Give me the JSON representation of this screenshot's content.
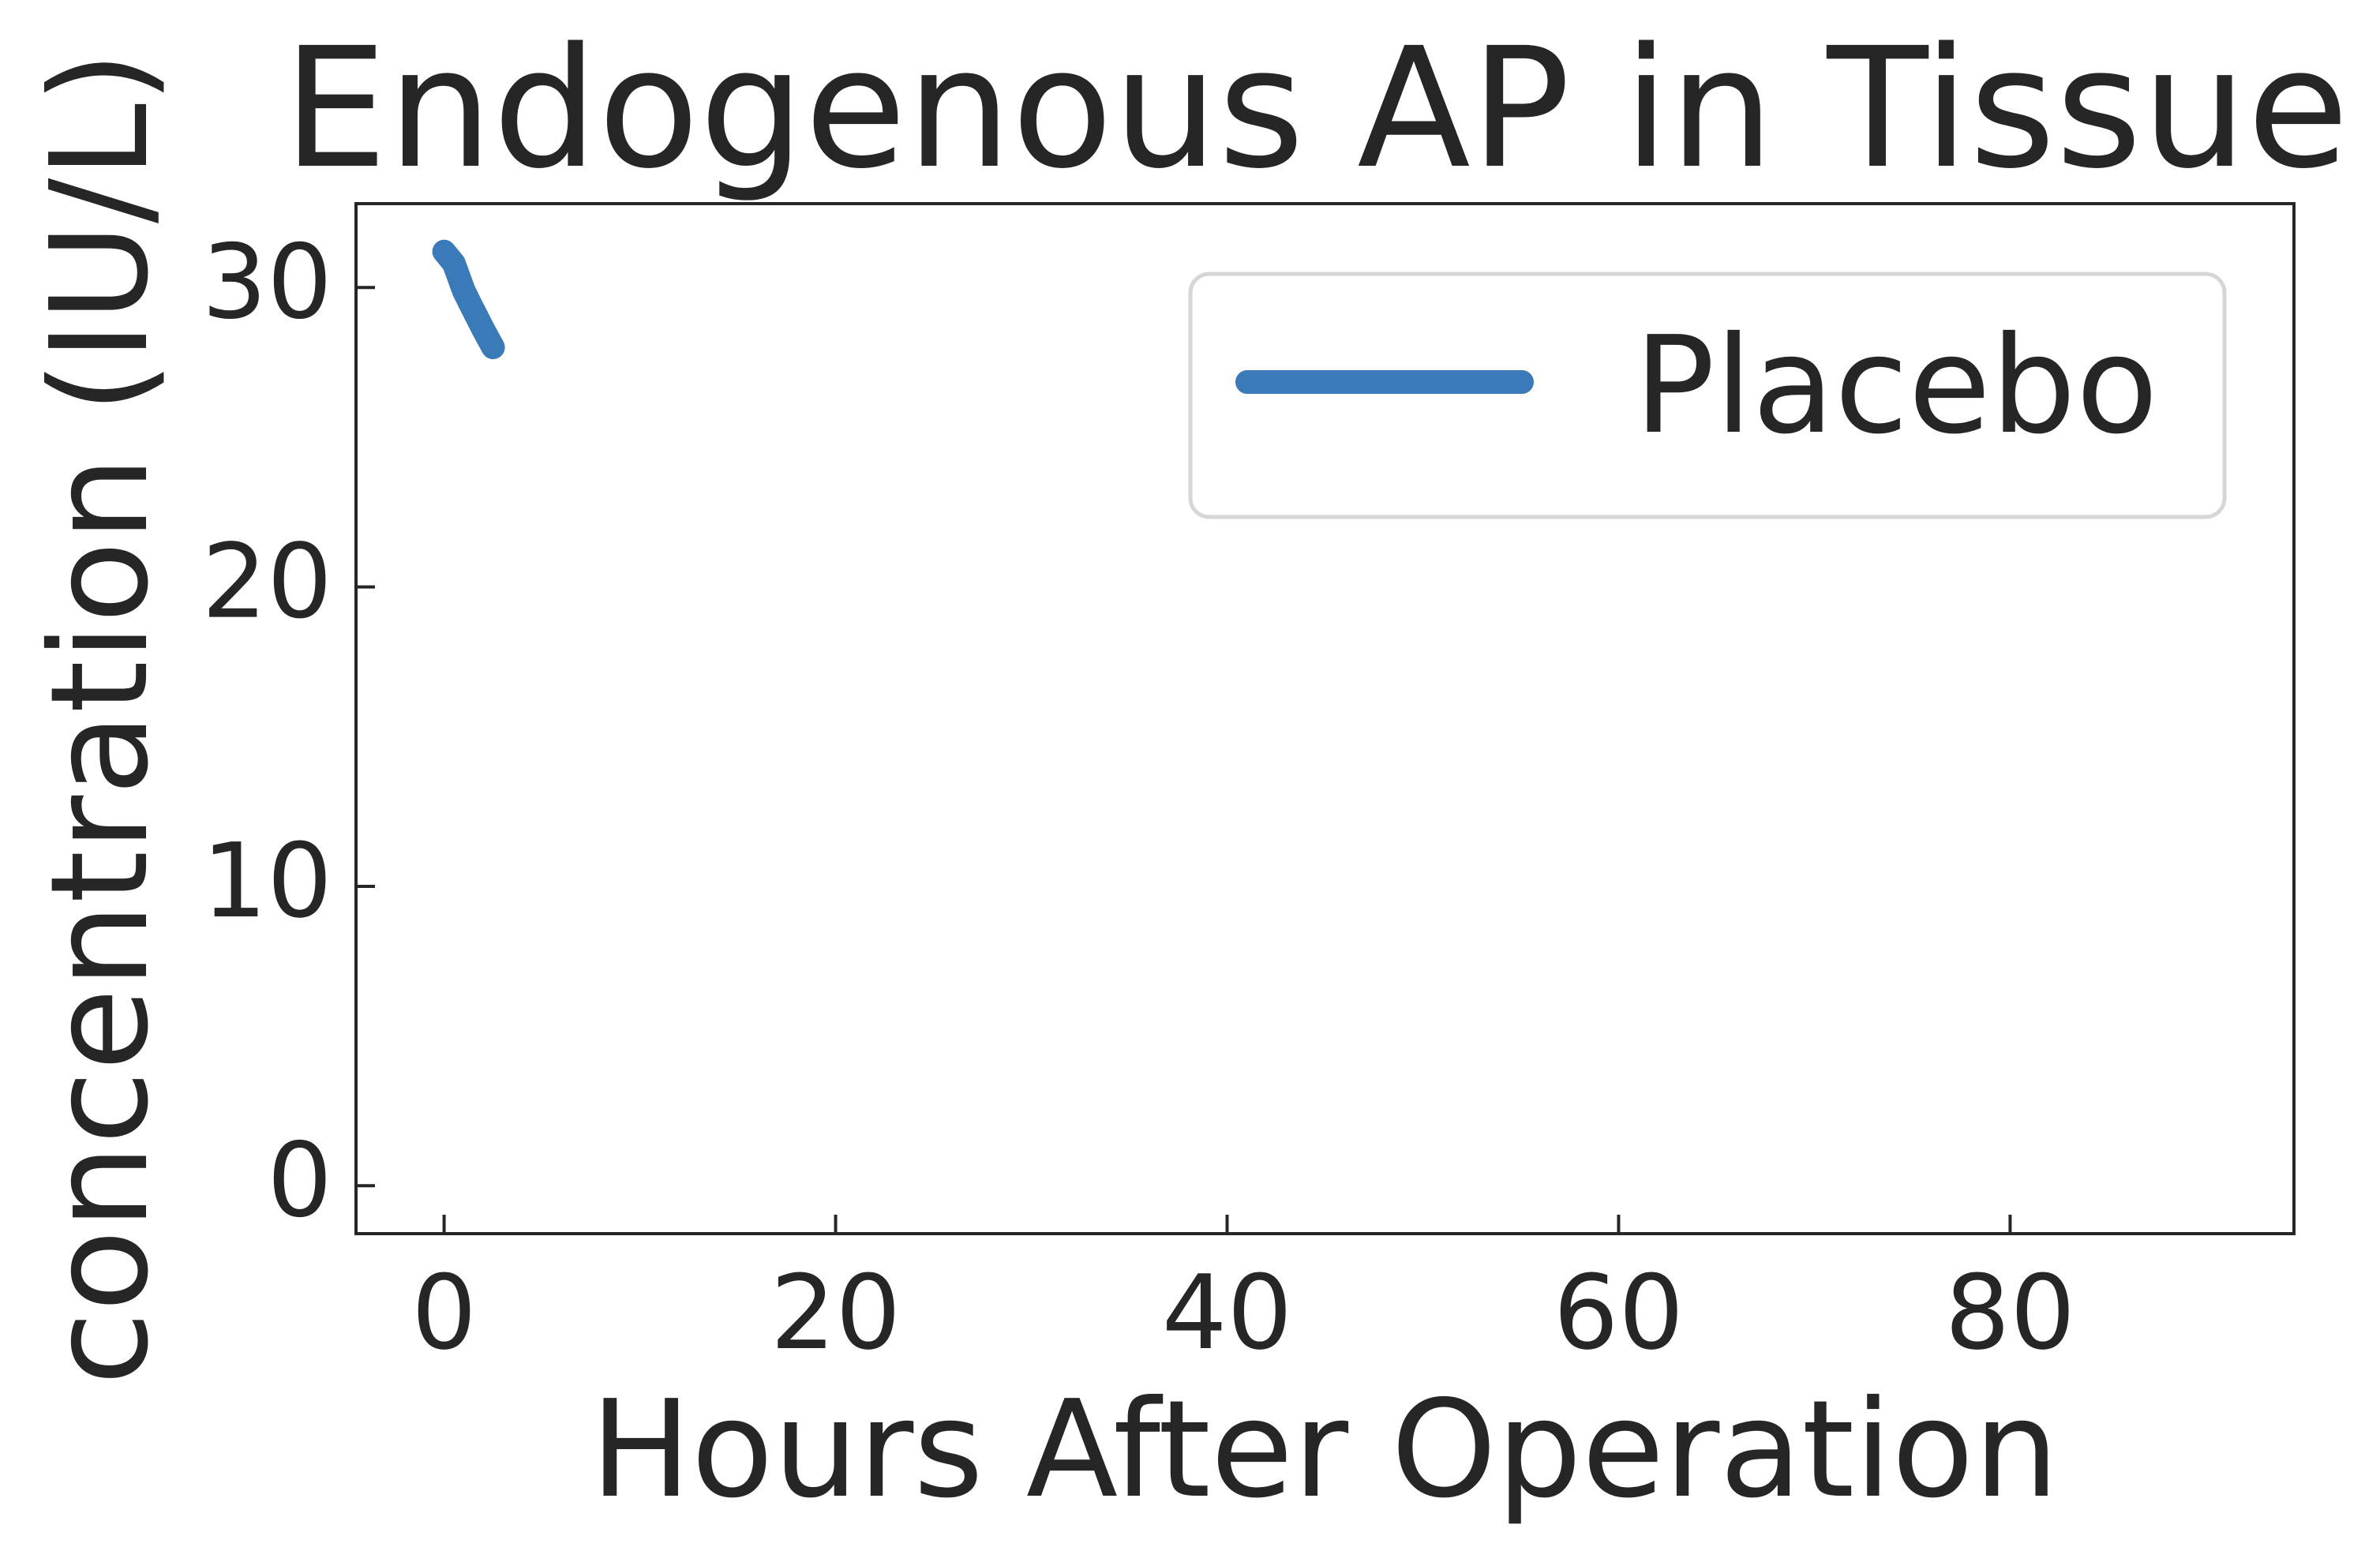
{
  "chart_data": {
    "type": "line",
    "title": "Endogenous AP in Tissue",
    "xlabel": "Hours After Operation",
    "ylabel": "concentration (IU/L)",
    "xlim": [
      -4.5,
      94.5
    ],
    "ylim": [
      -1.6,
      32.8
    ],
    "x_ticks": [
      0,
      20,
      40,
      60,
      80
    ],
    "y_ticks": [
      0,
      10,
      20,
      30
    ],
    "grid": false,
    "legend_position": "top-right",
    "series": [
      {
        "name": "Placebo",
        "color": "#3a7ab8",
        "x": [
          0,
          0.5,
          1.0,
          1.3,
          2.0,
          2.5
        ],
        "y": [
          31.2,
          30.8,
          29.9,
          29.5,
          28.6,
          28.0
        ]
      }
    ]
  }
}
